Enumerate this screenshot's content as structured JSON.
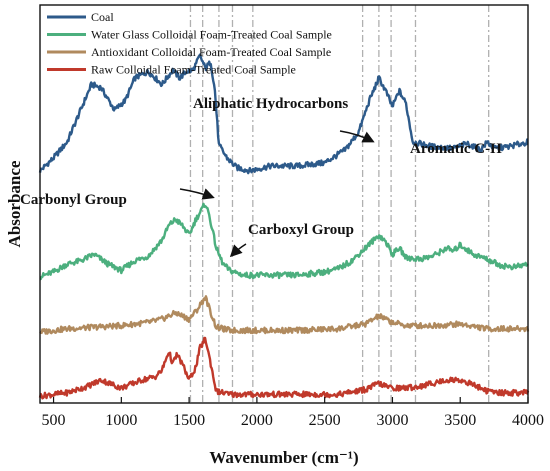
{
  "chart_data": {
    "type": "line",
    "xlabel": "Wavenumber (cm⁻¹)",
    "ylabel": "Absorbance",
    "xlim": [
      400,
      4000
    ],
    "x_ticks": [
      500,
      1000,
      1500,
      2000,
      2500,
      3000,
      3500,
      4000
    ],
    "y_ticks_shown": false,
    "grid": false,
    "legend_position": "top-left",
    "reference_lines_x": [
      1510,
      1600,
      1720,
      1820,
      1970,
      2780,
      2900,
      2990,
      3170,
      3710
    ],
    "annotations": [
      {
        "text": "Aliphatic Hydrocarbons"
      },
      {
        "text": "Aromatic C-H"
      },
      {
        "text": "Carbonyl Group"
      },
      {
        "text": "Carboxyl Group"
      }
    ],
    "series": [
      {
        "name": "Coal",
        "color": "#2d5a8a",
        "x": [
          400,
          500,
          600,
          700,
          780,
          850,
          950,
          1030,
          1100,
          1200,
          1300,
          1380,
          1430,
          1480,
          1530,
          1580,
          1620,
          1660,
          1690,
          1720,
          1780,
          1850,
          1950,
          2100,
          2300,
          2500,
          2650,
          2750,
          2830,
          2900,
          2950,
          3000,
          3050,
          3100,
          3150,
          3300,
          3450,
          3550,
          3650,
          3700,
          3750,
          3850,
          4000
        ],
        "y": [
          0.12,
          0.2,
          0.3,
          0.5,
          0.66,
          0.64,
          0.5,
          0.56,
          0.7,
          0.74,
          0.66,
          0.75,
          0.7,
          0.74,
          0.75,
          0.84,
          0.76,
          0.8,
          0.62,
          0.28,
          0.2,
          0.14,
          0.12,
          0.15,
          0.15,
          0.17,
          0.25,
          0.36,
          0.56,
          0.7,
          0.62,
          0.52,
          0.62,
          0.54,
          0.3,
          0.27,
          0.26,
          0.29,
          0.25,
          0.3,
          0.26,
          0.27,
          0.3
        ]
      },
      {
        "name": "Water Glass Colloidal Foam-Treated Coal Sample",
        "color": "#4caf7e",
        "x": [
          400,
          500,
          600,
          700,
          800,
          900,
          1000,
          1100,
          1200,
          1300,
          1350,
          1400,
          1450,
          1500,
          1550,
          1580,
          1620,
          1650,
          1700,
          1750,
          1800,
          1900,
          2100,
          2300,
          2500,
          2600,
          2700,
          2800,
          2900,
          2950,
          3000,
          3050,
          3100,
          3200,
          3300,
          3400,
          3450,
          3500,
          3600,
          3700,
          3800,
          3900,
          4000
        ],
        "y": [
          0.02,
          0.05,
          0.1,
          0.12,
          0.16,
          0.1,
          0.06,
          0.12,
          0.15,
          0.25,
          0.34,
          0.38,
          0.34,
          0.28,
          0.38,
          0.42,
          0.48,
          0.4,
          0.2,
          0.1,
          0.06,
          0.03,
          0.03,
          0.03,
          0.05,
          0.07,
          0.12,
          0.2,
          0.28,
          0.24,
          0.16,
          0.2,
          0.14,
          0.13,
          0.15,
          0.2,
          0.18,
          0.22,
          0.16,
          0.13,
          0.09,
          0.08,
          0.1
        ]
      },
      {
        "name": "Antioxidant Colloidal Foam-Treated Coal Sample",
        "color": "#b08a5e",
        "x": [
          400,
          600,
          800,
          1000,
          1100,
          1200,
          1300,
          1350,
          1400,
          1450,
          1500,
          1560,
          1620,
          1660,
          1700,
          1800,
          2000,
          2300,
          2600,
          2800,
          2900,
          2950,
          3000,
          3100,
          3300,
          3500,
          3700,
          3900,
          4000
        ],
        "y": [
          0.0,
          0.02,
          0.03,
          0.04,
          0.05,
          0.06,
          0.08,
          0.1,
          0.12,
          0.1,
          0.08,
          0.14,
          0.22,
          0.12,
          0.03,
          0.01,
          0.01,
          0.01,
          0.02,
          0.05,
          0.1,
          0.08,
          0.06,
          0.04,
          0.04,
          0.05,
          0.02,
          0.02,
          0.02
        ]
      },
      {
        "name": "Raw Colloidal Foam-Treated Coal Sample",
        "color": "#c0392b",
        "x": [
          400,
          600,
          750,
          850,
          1000,
          1150,
          1250,
          1300,
          1350,
          1380,
          1410,
          1450,
          1500,
          1550,
          1580,
          1620,
          1660,
          1700,
          1800,
          2000,
          2300,
          2600,
          2800,
          2900,
          2950,
          3000,
          3100,
          3200,
          3300,
          3400,
          3500,
          3600,
          3700,
          3800,
          4000
        ],
        "y": [
          0.0,
          0.02,
          0.06,
          0.1,
          0.05,
          0.1,
          0.12,
          0.16,
          0.28,
          0.2,
          0.26,
          0.2,
          0.1,
          0.18,
          0.3,
          0.36,
          0.2,
          0.03,
          0.01,
          0.01,
          0.01,
          0.01,
          0.04,
          0.08,
          0.06,
          0.05,
          0.05,
          0.06,
          0.08,
          0.1,
          0.1,
          0.07,
          0.03,
          0.02,
          0.02
        ]
      }
    ]
  }
}
